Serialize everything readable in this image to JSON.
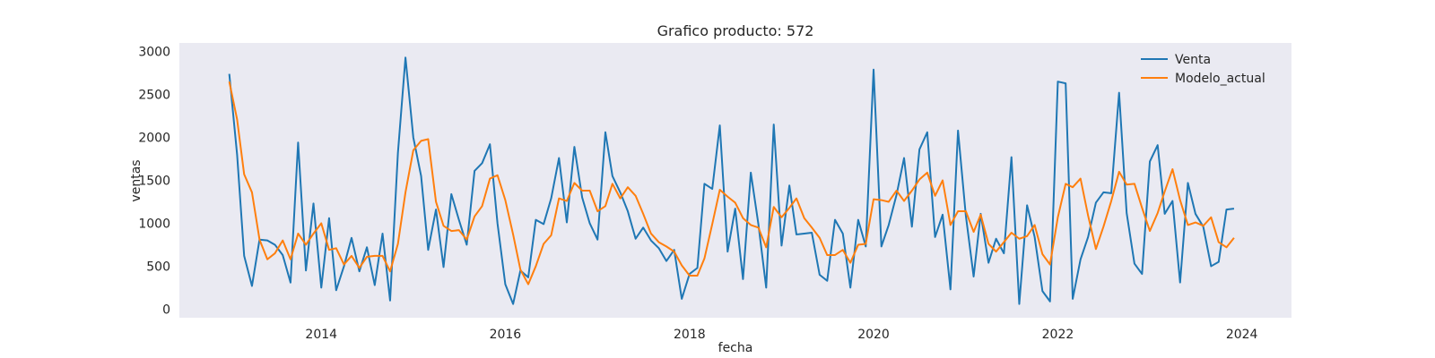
{
  "chart_data": {
    "type": "line",
    "title": "Grafico producto: 572",
    "xlabel": "fecha",
    "ylabel": "ventas",
    "xlim": [
      "2012-06-17",
      "2024-07-16"
    ],
    "ylim": [
      -100,
      3100
    ],
    "x_ticks": [
      "2014",
      "2016",
      "2018",
      "2020",
      "2022",
      "2024"
    ],
    "y_ticks": [
      0,
      500,
      1000,
      1500,
      2000,
      2500,
      3000
    ],
    "grid": false,
    "legend_position": "top-right",
    "background_color": "#eaeaf2",
    "x_start": "2013-01",
    "x_step": "monthly",
    "series": [
      {
        "name": "Venta",
        "color": "#1f77b4",
        "values": [
          2740,
          1800,
          620,
          270,
          810,
          800,
          750,
          630,
          310,
          1940,
          450,
          1230,
          250,
          1060,
          220,
          500,
          830,
          440,
          720,
          280,
          880,
          100,
          1820,
          2930,
          2000,
          1550,
          690,
          1160,
          490,
          1340,
          1040,
          750,
          1610,
          1700,
          1920,
          1000,
          290,
          60,
          450,
          370,
          1040,
          990,
          1290,
          1760,
          1010,
          1890,
          1300,
          1000,
          810,
          2060,
          1550,
          1360,
          1140,
          820,
          950,
          800,
          710,
          560,
          690,
          120,
          410,
          480,
          1460,
          1400,
          2140,
          670,
          1170,
          350,
          1590,
          990,
          250,
          2150,
          740,
          1440,
          870,
          880,
          890,
          400,
          330,
          1040,
          880,
          250,
          1040,
          730,
          2790,
          730,
          980,
          1330,
          1760,
          960,
          1860,
          2060,
          840,
          1100,
          230,
          2080,
          1090,
          380,
          1110,
          540,
          820,
          650,
          1770,
          60,
          1210,
          840,
          210,
          90,
          2650,
          2630,
          120,
          580,
          840,
          1240,
          1360,
          1350,
          2520,
          1120,
          530,
          410,
          1720,
          1910,
          1110,
          1260,
          310,
          1470,
          1110,
          960,
          500,
          550,
          1160,
          1170
        ]
      },
      {
        "name": "Modelo_actual",
        "color": "#ff7f0e",
        "values": [
          2650,
          2210,
          1570,
          1360,
          810,
          580,
          650,
          800,
          580,
          880,
          750,
          880,
          1000,
          690,
          710,
          520,
          620,
          480,
          610,
          620,
          620,
          440,
          760,
          1360,
          1850,
          1960,
          1980,
          1250,
          970,
          910,
          920,
          810,
          1080,
          1200,
          1520,
          1560,
          1270,
          870,
          460,
          290,
          500,
          760,
          860,
          1290,
          1260,
          1470,
          1380,
          1380,
          1140,
          1200,
          1460,
          1290,
          1420,
          1320,
          1110,
          880,
          780,
          730,
          670,
          510,
          390,
          390,
          590,
          990,
          1390,
          1310,
          1240,
          1060,
          980,
          950,
          720,
          1190,
          1070,
          1180,
          1290,
          1060,
          950,
          830,
          630,
          630,
          690,
          540,
          750,
          760,
          1280,
          1270,
          1250,
          1380,
          1260,
          1380,
          1510,
          1590,
          1320,
          1500,
          980,
          1140,
          1140,
          900,
          1100,
          760,
          670,
          780,
          890,
          820,
          850,
          980,
          640,
          520,
          1070,
          1460,
          1420,
          1520,
          1090,
          700,
          960,
          1260,
          1600,
          1450,
          1460,
          1180,
          910,
          1120,
          1370,
          1630,
          1270,
          980,
          1010,
          970,
          1070,
          780,
          720,
          830
        ]
      }
    ]
  }
}
